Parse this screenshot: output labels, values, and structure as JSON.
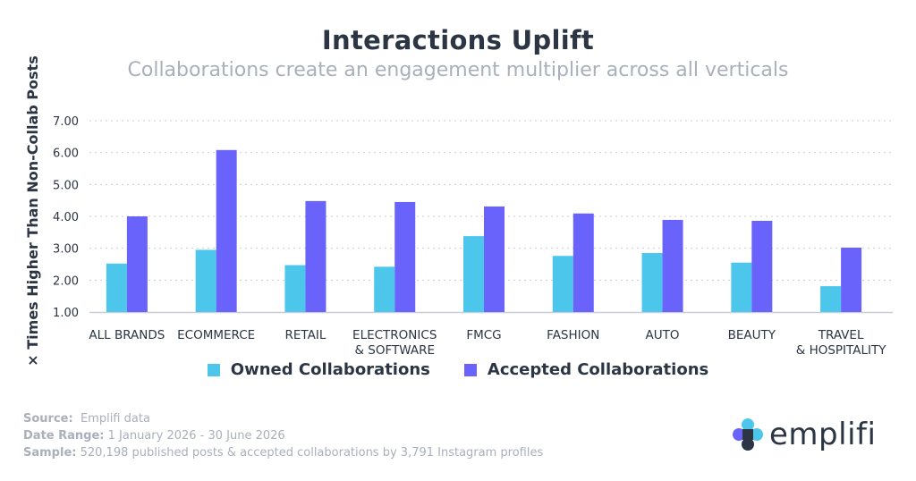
{
  "chart_data": {
    "type": "bar",
    "title": "Interactions Uplift",
    "subtitle": "Collaborations create an engagement multiplier across all verticals",
    "ylabel": "× Times Higher Than Non-Collab Posts",
    "xlabel": "",
    "ylim": [
      1.0,
      7.0
    ],
    "yticks": [
      "1.00",
      "2.00",
      "3.00",
      "4.00",
      "5.00",
      "6.00",
      "7.00"
    ],
    "grid": true,
    "legend_position": "bottom",
    "categories": [
      [
        "ALL BRANDS"
      ],
      [
        "ECOMMERCE"
      ],
      [
        "RETAIL"
      ],
      [
        "ELECTRONICS",
        "& SOFTWARE"
      ],
      [
        "FMCG"
      ],
      [
        "FASHION"
      ],
      [
        "AUTO"
      ],
      [
        "BEAUTY"
      ],
      [
        "TRAVEL",
        "& HOSPITALITY"
      ]
    ],
    "series": [
      {
        "name": "Owned Collaborations",
        "color": "#4cc6eb",
        "values": [
          2.52,
          2.95,
          2.47,
          2.42,
          3.38,
          2.76,
          2.85,
          2.55,
          1.81
        ]
      },
      {
        "name": "Accepted Collaborations",
        "color": "#6a63fb",
        "values": [
          4.0,
          6.08,
          4.48,
          4.45,
          4.31,
          4.09,
          3.89,
          3.86,
          3.02
        ]
      }
    ]
  },
  "footer": {
    "source_label": "Source:",
    "source_value": "Emplifi data",
    "date_label": "Date Range:",
    "date_value": "1 January 2026 - 30 June 2026",
    "sample_label": "Sample:",
    "sample_value": "520,198 published posts & accepted collaborations by 3,791 Instagram profiles"
  },
  "logo": {
    "text": "emplifi",
    "tm": "™"
  }
}
